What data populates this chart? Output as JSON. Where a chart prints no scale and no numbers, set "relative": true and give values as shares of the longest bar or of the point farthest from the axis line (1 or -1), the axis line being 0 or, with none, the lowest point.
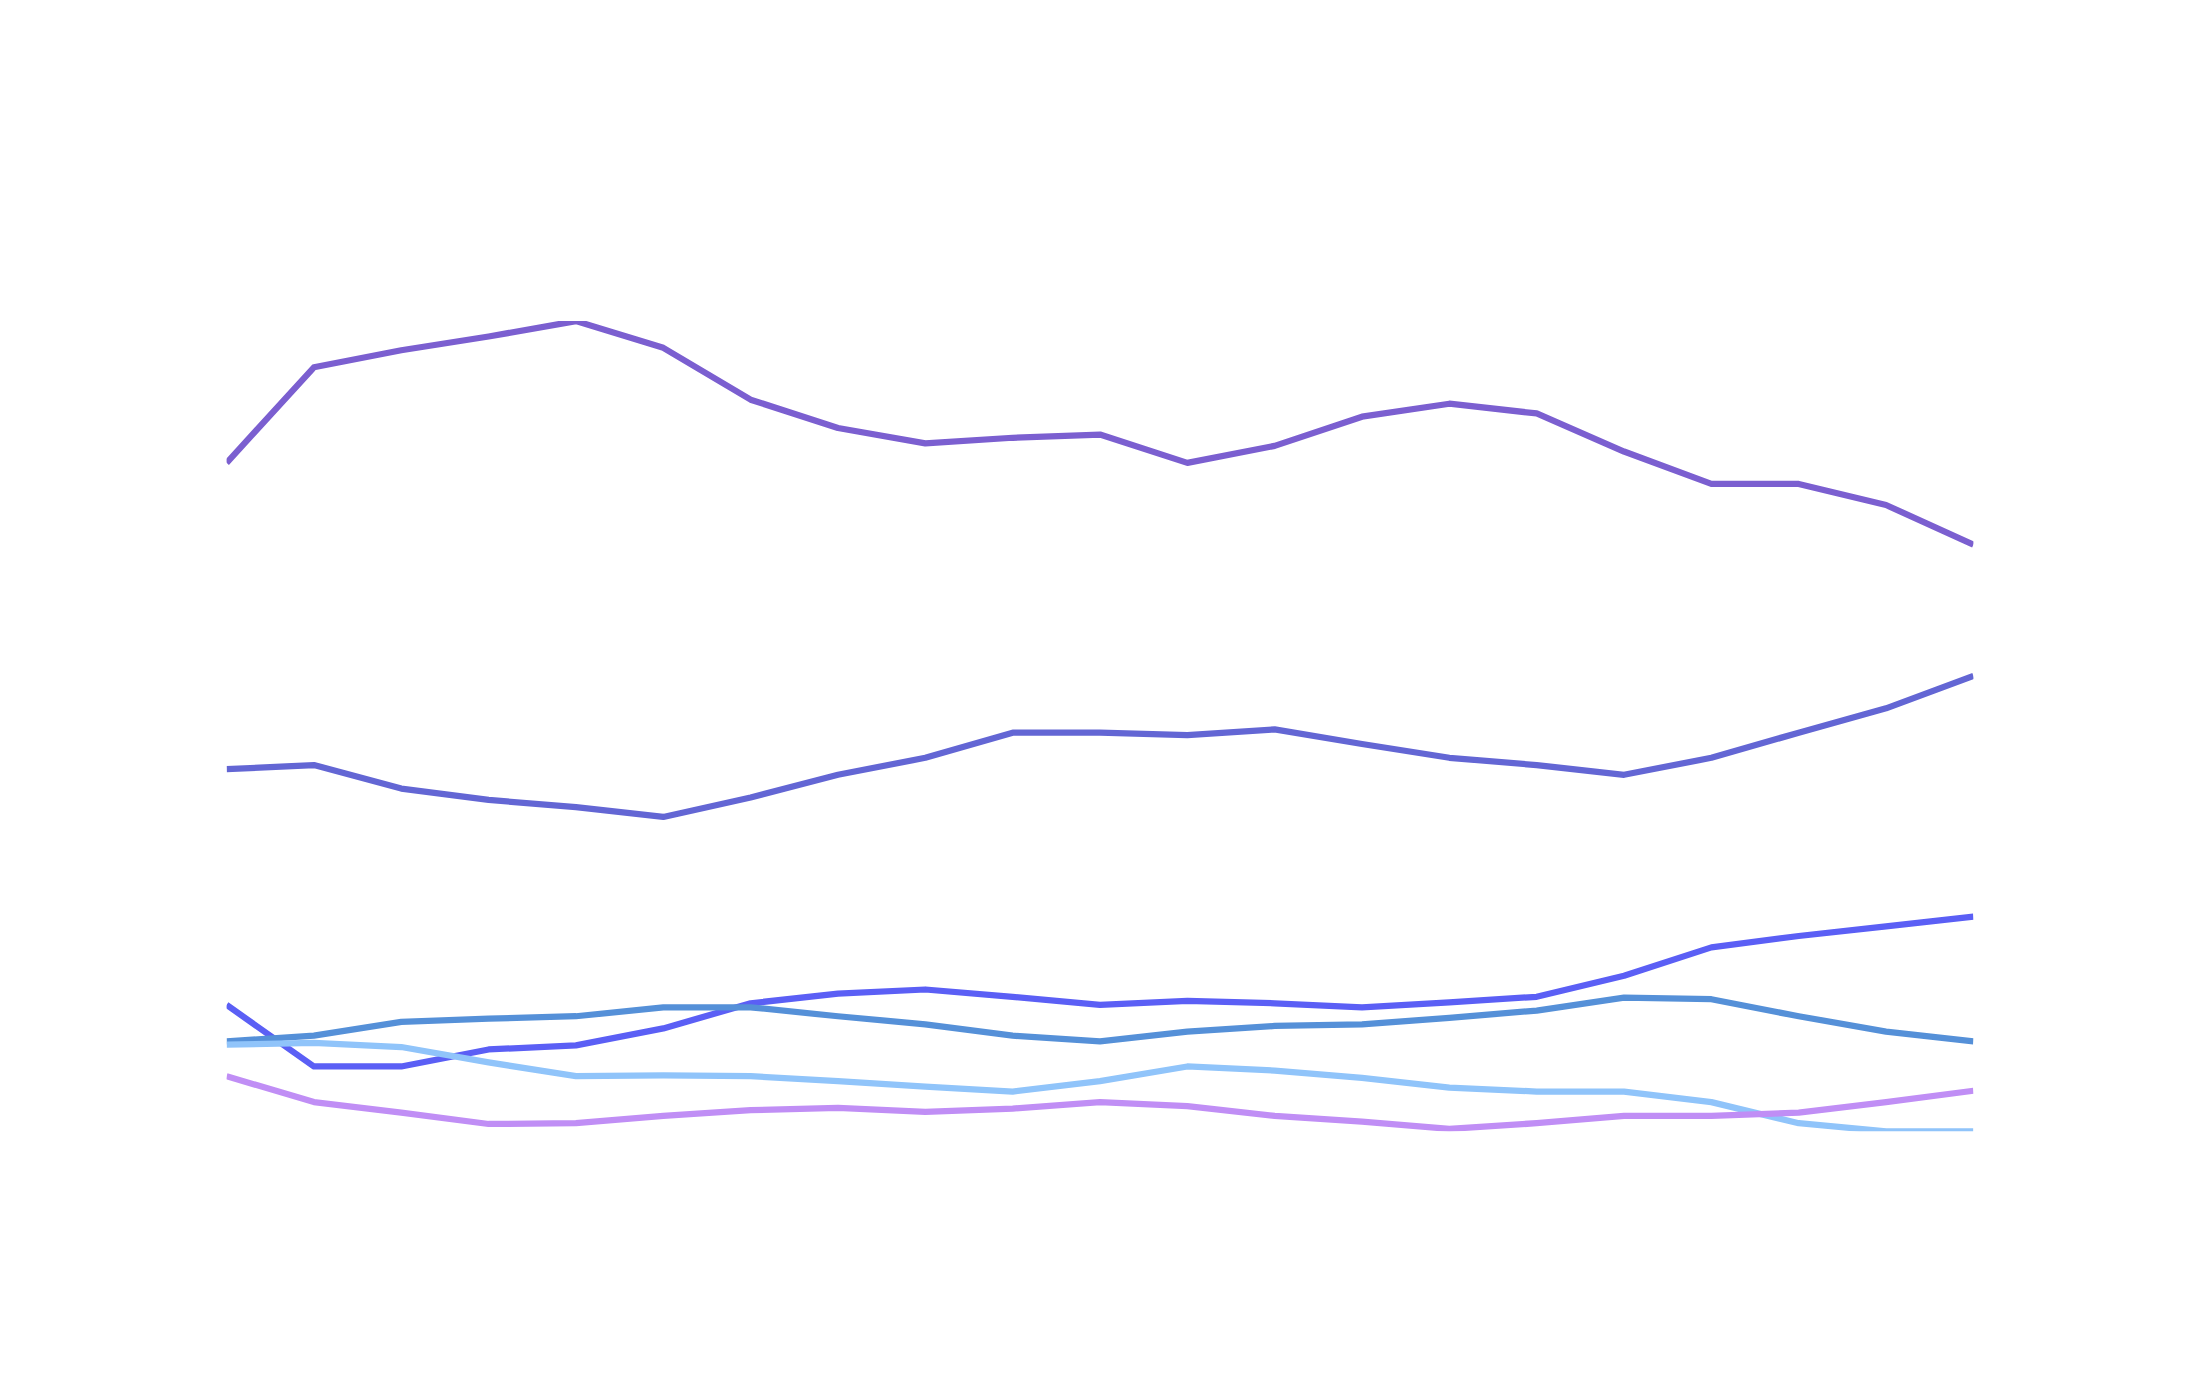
{
  "chart_data": {
    "type": "line",
    "relative": true,
    "grid": false,
    "legend": false,
    "marker": "none",
    "line_style": "solid",
    "categories": [
      null,
      null,
      null,
      null,
      null,
      null,
      null,
      null,
      null,
      null,
      null,
      null,
      null,
      null,
      null,
      null,
      null,
      null,
      null,
      null,
      null
    ],
    "series": [
      {
        "color": "#7b5fd0",
        "values": [
          0.825,
          0.943,
          0.964,
          0.981,
          1.0,
          0.967,
          0.903,
          0.868,
          0.849,
          0.856,
          0.86,
          0.825,
          0.846,
          0.882,
          0.898,
          0.886,
          0.839,
          0.799,
          0.799,
          0.773,
          0.724
        ]
      },
      {
        "color": "#6366d4",
        "values": [
          0.447,
          0.452,
          0.423,
          0.409,
          0.4,
          0.388,
          0.412,
          0.44,
          0.461,
          0.492,
          0.492,
          0.489,
          0.496,
          0.478,
          0.461,
          0.452,
          0.44,
          0.461,
          0.492,
          0.522,
          0.562
        ]
      },
      {
        "color": "#5b5ff5",
        "values": [
          0.156,
          0.08,
          0.08,
          0.101,
          0.106,
          0.127,
          0.158,
          0.17,
          0.175,
          0.166,
          0.156,
          0.161,
          0.158,
          0.153,
          0.159,
          0.166,
          0.192,
          0.227,
          0.241,
          0.253,
          0.265
        ]
      },
      {
        "color": "#5590d8",
        "values": [
          0.111,
          0.118,
          0.135,
          0.139,
          0.142,
          0.153,
          0.153,
          0.142,
          0.132,
          0.118,
          0.111,
          0.123,
          0.13,
          0.132,
          0.14,
          0.149,
          0.165,
          0.163,
          0.142,
          0.123,
          0.111
        ]
      },
      {
        "color": "#90c4fa",
        "values": [
          0.107,
          0.109,
          0.104,
          0.085,
          0.068,
          0.069,
          0.068,
          0.062,
          0.055,
          0.049,
          0.062,
          0.08,
          0.075,
          0.066,
          0.054,
          0.049,
          0.049,
          0.036,
          0.01,
          0.0,
          0.0
        ]
      },
      {
        "color": "#c08ef5",
        "values": [
          0.068,
          0.036,
          0.023,
          0.009,
          0.01,
          0.019,
          0.026,
          0.029,
          0.024,
          0.028,
          0.036,
          0.031,
          0.019,
          0.012,
          0.003,
          0.01,
          0.019,
          0.019,
          0.023,
          0.036,
          0.05
        ]
      }
    ]
  }
}
